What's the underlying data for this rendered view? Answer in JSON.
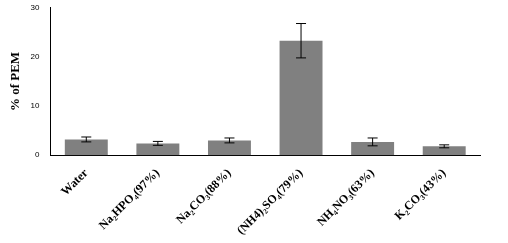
{
  "chart_data": {
    "type": "bar",
    "y_label": "% of PEM",
    "categories": [
      "Water",
      "Na₂HPO₄(97%)",
      "Na₂CO₃(88%)",
      "(NH4)₂SO₄(79%)",
      "NH₄NO₃(63%)",
      "K₂CO₃(43%)"
    ],
    "values": [
      3.2,
      2.4,
      3.0,
      23.3,
      2.7,
      1.8
    ],
    "errors": [
      0.5,
      0.4,
      0.5,
      3.5,
      0.8,
      0.3
    ],
    "color": "#808080",
    "ylim": [
      0,
      30
    ],
    "yticks": [
      0,
      10,
      20,
      30
    ],
    "grid": false
  }
}
